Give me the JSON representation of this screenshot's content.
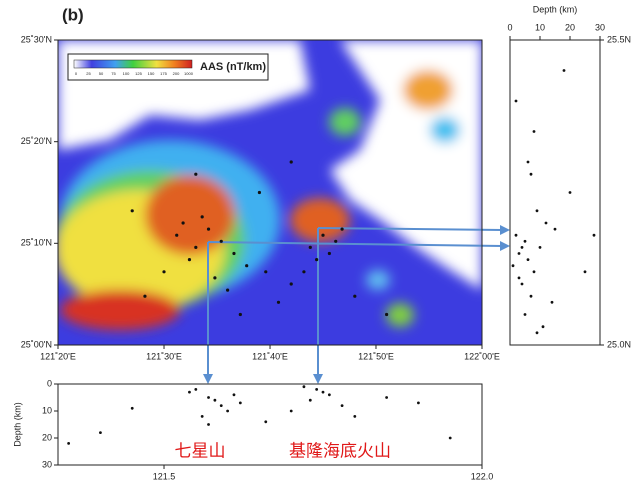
{
  "panel_label": "(b)",
  "chart_data": [
    {
      "type": "scatter",
      "name": "map",
      "colorbar": {
        "label": "AAS (nT/km)",
        "ticks": [
          0,
          25,
          50,
          75,
          100,
          125,
          150,
          175,
          200,
          1000
        ]
      },
      "xlim": [
        121.3333,
        122.0
      ],
      "ylim": [
        25.0,
        25.5
      ],
      "xticks": [
        {
          "value": 121.3333,
          "label": "121˚20'E"
        },
        {
          "value": 121.5,
          "label": "121˚30'E"
        },
        {
          "value": 121.6667,
          "label": "121˚40'E"
        },
        {
          "value": 121.8333,
          "label": "121˚50'E"
        },
        {
          "value": 122.0,
          "label": "122˚00'E"
        }
      ],
      "yticks": [
        {
          "value": 25.0,
          "label": "25˚00'N"
        },
        {
          "value": 25.1667,
          "label": "25˚10'N"
        },
        {
          "value": 25.3333,
          "label": "25˚20'N"
        },
        {
          "value": 25.5,
          "label": "25˚30'N"
        }
      ],
      "color": "#111111",
      "x": [
        121.52,
        121.55,
        121.57,
        121.54,
        121.59,
        121.61,
        121.5,
        121.56,
        121.63,
        121.58,
        121.53,
        121.6,
        121.66,
        121.7,
        121.73,
        121.75,
        121.77,
        121.74,
        121.78,
        121.72,
        121.68,
        121.62,
        121.47,
        121.8,
        121.85,
        121.45,
        121.65,
        121.7,
        121.55,
        121.76
      ],
      "values": [
        25.18,
        25.16,
        25.19,
        25.14,
        25.17,
        25.15,
        25.12,
        25.21,
        25.13,
        25.11,
        25.2,
        25.09,
        25.12,
        25.1,
        25.16,
        25.18,
        25.17,
        25.14,
        25.19,
        25.12,
        25.07,
        25.05,
        25.08,
        25.08,
        25.05,
        25.22,
        25.25,
        25.3,
        25.28,
        25.15
      ]
    },
    {
      "type": "scatter",
      "name": "section-lat",
      "xlabel": "Depth (km)",
      "xlim": [
        0,
        30
      ],
      "ylim": [
        25.0,
        25.5
      ],
      "xticks": [
        0,
        10,
        20,
        30
      ],
      "yticks": [
        {
          "value": 25.0,
          "label": "25.0N"
        },
        {
          "value": 25.5,
          "label": "25.5N"
        }
      ],
      "color": "#111111",
      "x": [
        3,
        5,
        8,
        2,
        6,
        10,
        4,
        12,
        7,
        1,
        9,
        15,
        5,
        3,
        20,
        11,
        6,
        8,
        25,
        2,
        14,
        4,
        18,
        7,
        28,
        9
      ],
      "values": [
        25.15,
        25.17,
        25.12,
        25.18,
        25.14,
        25.16,
        25.1,
        25.2,
        25.08,
        25.13,
        25.22,
        25.19,
        25.05,
        25.11,
        25.25,
        25.03,
        25.3,
        25.35,
        25.12,
        25.4,
        25.07,
        25.16,
        25.45,
        25.28,
        25.18,
        25.02
      ]
    },
    {
      "type": "scatter",
      "name": "section-lon",
      "ylabel": "Depth (km)",
      "annotations": [
        "七星山",
        "基隆海底火山"
      ],
      "xlim": [
        121.3333,
        122.0
      ],
      "ylim": [
        30,
        0
      ],
      "xticks": [
        121.5,
        {
          "value": 122.0,
          "label": "122.0"
        }
      ],
      "yticks": [
        0,
        10,
        20,
        30
      ],
      "color": "#111111",
      "x": [
        121.55,
        121.57,
        121.59,
        121.61,
        121.56,
        121.58,
        121.6,
        121.54,
        121.62,
        121.57,
        121.72,
        121.74,
        121.76,
        121.73,
        121.75,
        121.78,
        121.7,
        121.8,
        121.85,
        121.45,
        121.4,
        121.9,
        121.66,
        121.95,
        121.35
      ],
      "values": [
        2,
        5,
        8,
        4,
        12,
        6,
        10,
        3,
        7,
        15,
        1,
        2,
        4,
        6,
        3,
        8,
        10,
        12,
        5,
        9,
        18,
        7,
        14,
        20,
        22
      ]
    }
  ]
}
